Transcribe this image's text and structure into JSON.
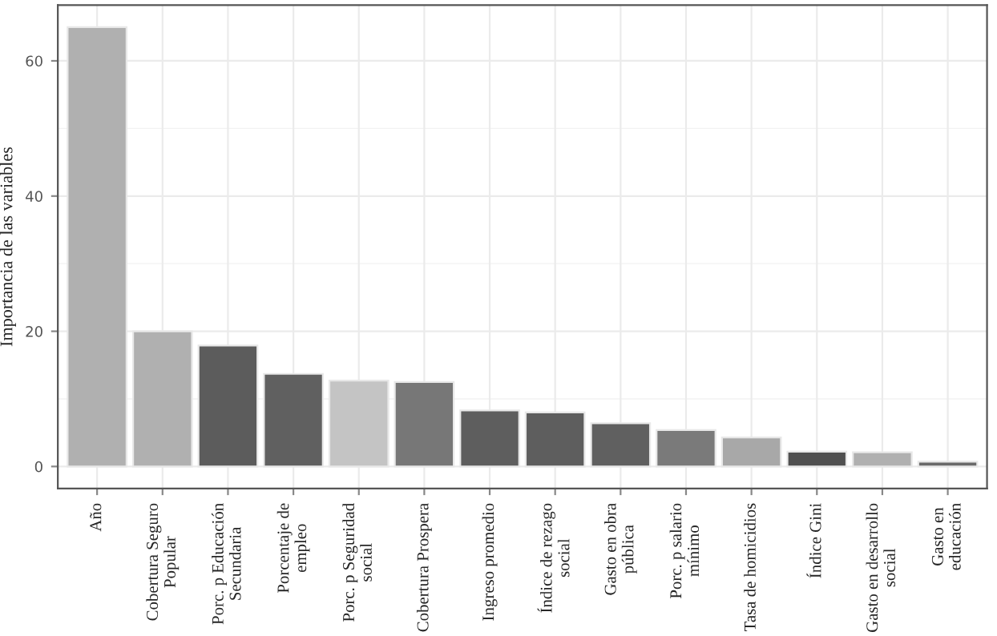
{
  "chart_data": {
    "type": "bar",
    "ylabel": "Importancia de las variables",
    "categories": [
      "Año",
      "Cobertura Seguro\nPopular",
      "Porc. p Educación\nSecundaria",
      "Porcentaje de\nempleo",
      "Porc. p Seguridad\nsocial",
      "Cobertura Prospera",
      "Ingreso promedio",
      "Índice de rezago\nsocial",
      "Gasto en obra\npública",
      "Porc. p salario\nmínimo",
      "Tasa de homicidios",
      "Índice Gini",
      "Gasto en desarrollo\nsocial",
      "Gasto en\neducación"
    ],
    "values": [
      65.0,
      20.0,
      17.9,
      13.7,
      12.7,
      12.5,
      8.3,
      8.0,
      6.4,
      5.4,
      4.3,
      2.2,
      2.1,
      0.7
    ],
    "colors": [
      "#b0b0b0",
      "#b0b0b0",
      "#5c5c5c",
      "#606060",
      "#c4c4c4",
      "#777777",
      "#5e5e5e",
      "#5e5e5e",
      "#606060",
      "#7a7a7a",
      "#a8a8a8",
      "#505050",
      "#b0b0b0",
      "#6a6a6a"
    ],
    "ylim": [
      -3.25,
      68.25
    ],
    "yticks": [
      0,
      20,
      40,
      60
    ],
    "grid": true
  }
}
